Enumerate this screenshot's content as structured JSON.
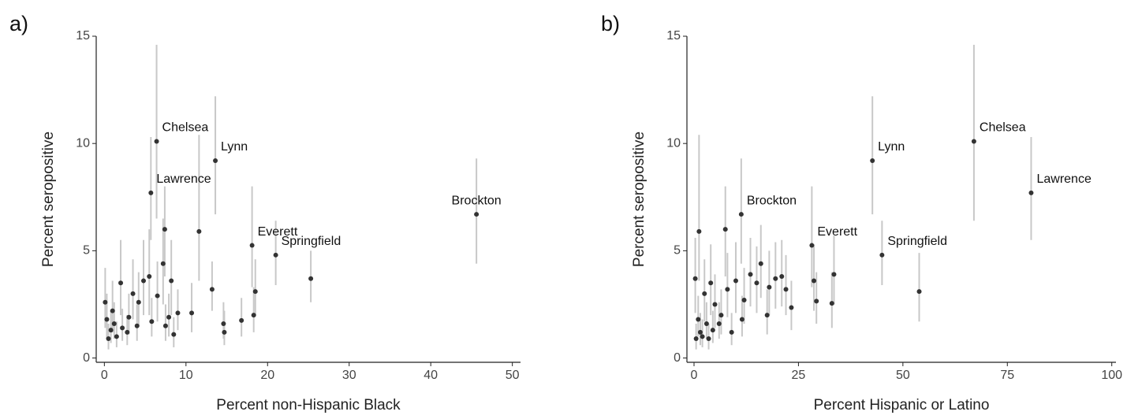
{
  "chart_data": [
    {
      "type": "scatter",
      "panel_label": "a)",
      "xlabel": "Percent non-Hispanic Black",
      "ylabel": "Percent seropositive",
      "xlim": [
        -1,
        51
      ],
      "ylim": [
        -0.2,
        15
      ],
      "xticks": [
        0,
        10,
        20,
        30,
        40,
        50
      ],
      "yticks": [
        0,
        5,
        10,
        15
      ],
      "color": "#333333",
      "bar_color": "#c8c8c8",
      "x": [
        6.4,
        13.6,
        5.7,
        45.6,
        18.1,
        21,
        25.3,
        11.6,
        7.4,
        18.5,
        18.3,
        14.6,
        14.7,
        16.8,
        13.2,
        10.7,
        9.0,
        8.2,
        7.2,
        5.5,
        4.8,
        2.0,
        3.5,
        6.5,
        7.9,
        4.2,
        1.0,
        0.1,
        0.3,
        0.8,
        1.5,
        2.2,
        2.8,
        0.5,
        1.2,
        3.0,
        4.0,
        5.8,
        7.5,
        8.5
      ],
      "y": [
        10.1,
        9.2,
        7.7,
        6.7,
        5.25,
        4.8,
        3.7,
        5.9,
        6.0,
        3.1,
        2.0,
        1.6,
        1.2,
        1.75,
        3.2,
        2.1,
        2.1,
        3.6,
        4.4,
        3.8,
        3.6,
        3.5,
        3.0,
        2.9,
        1.9,
        2.6,
        2.2,
        2.6,
        1.8,
        1.3,
        1.0,
        1.4,
        1.2,
        0.9,
        1.6,
        1.9,
        1.5,
        1.7,
        1.5,
        1.1
      ],
      "lower": [
        6.5,
        6.7,
        5.5,
        4.4,
        3.3,
        3.4,
        2.6,
        3.6,
        3.8,
        2.0,
        1.2,
        0.9,
        0.6,
        1.0,
        2.2,
        1.2,
        1.3,
        2.0,
        2.5,
        2.0,
        2.0,
        2.0,
        1.8,
        1.7,
        1.0,
        1.5,
        1.2,
        1.4,
        0.9,
        0.7,
        0.5,
        0.8,
        0.6,
        0.4,
        0.9,
        1.1,
        0.8,
        1.0,
        0.8,
        0.5
      ],
      "upper": [
        14.6,
        12.2,
        10.3,
        9.3,
        8.0,
        6.4,
        5.0,
        10.4,
        8.0,
        4.6,
        3.3,
        2.6,
        2.2,
        2.8,
        4.5,
        3.5,
        3.2,
        5.5,
        6.5,
        6.0,
        5.5,
        5.5,
        4.6,
        4.5,
        3.0,
        4.0,
        3.6,
        4.2,
        3.0,
        2.2,
        1.7,
        2.3,
        2.0,
        1.6,
        2.6,
        3.0,
        2.5,
        2.8,
        2.5,
        1.9
      ],
      "labels": [
        "Chelsea",
        "Lynn",
        "Lawrence",
        "Brockton",
        "Everett",
        "Springfield",
        null,
        null,
        null,
        null,
        null,
        null,
        null,
        null,
        null,
        null,
        null,
        null,
        null,
        null,
        null,
        null,
        null,
        null,
        null,
        null,
        null,
        null,
        null,
        null,
        null,
        null,
        null,
        null,
        null,
        null,
        null,
        null,
        null,
        null
      ]
    },
    {
      "type": "scatter",
      "panel_label": "b)",
      "xlabel": "Percent Hispanic or Latino",
      "ylabel": "Percent seropositive",
      "xlim": [
        -1.7,
        101
      ],
      "ylim": [
        -0.2,
        15
      ],
      "xticks": [
        0,
        25,
        50,
        75,
        100
      ],
      "yticks": [
        0,
        5,
        10,
        15
      ],
      "color": "#333333",
      "bar_color": "#c8c8c8",
      "x": [
        67,
        80.7,
        42.7,
        11.3,
        28.2,
        45,
        53.9,
        33.5,
        33,
        29.3,
        28.7,
        23.3,
        21,
        22,
        19.5,
        18,
        17.5,
        16,
        15,
        13.5,
        12,
        11.5,
        10,
        8,
        7.5,
        1.2,
        0.3,
        2.5,
        4.0,
        5,
        6.5,
        9,
        3,
        1.5,
        0.5,
        2,
        4.5,
        1,
        6,
        3.5
      ],
      "y": [
        10.1,
        7.7,
        9.2,
        6.7,
        5.25,
        4.8,
        3.1,
        3.9,
        2.55,
        2.65,
        3.6,
        2.35,
        3.8,
        3.2,
        3.7,
        3.3,
        2.0,
        4.4,
        3.5,
        3.9,
        2.7,
        1.8,
        3.6,
        3.2,
        6.0,
        5.9,
        3.7,
        3.0,
        3.5,
        2.5,
        2.0,
        1.2,
        1.6,
        1.2,
        0.9,
        1.0,
        1.3,
        1.8,
        1.6,
        0.9
      ],
      "lower": [
        6.4,
        5.5,
        6.7,
        4.4,
        3.3,
        3.4,
        1.7,
        2.5,
        1.4,
        1.6,
        2.2,
        1.3,
        2.4,
        2.0,
        2.3,
        2.0,
        1.1,
        2.8,
        2.1,
        2.4,
        1.6,
        1.0,
        2.1,
        1.9,
        3.8,
        3.6,
        2.1,
        1.7,
        2.0,
        1.4,
        1.1,
        0.6,
        0.9,
        0.6,
        0.4,
        0.5,
        0.7,
        1.0,
        0.9,
        0.4
      ],
      "upper": [
        14.6,
        10.3,
        12.2,
        9.3,
        8.0,
        6.4,
        4.9,
        5.7,
        4.0,
        4.0,
        5.3,
        3.6,
        5.5,
        4.8,
        5.4,
        5.0,
        3.2,
        6.2,
        5.2,
        5.6,
        4.2,
        2.9,
        5.4,
        4.9,
        8.0,
        10.4,
        5.6,
        4.6,
        5.3,
        3.9,
        3.2,
        2.1,
        2.6,
        2.1,
        1.6,
        1.8,
        2.2,
        2.9,
        2.6,
        1.6
      ],
      "labels": [
        "Chelsea",
        "Lawrence",
        "Lynn",
        "Brockton",
        "Everett",
        "Springfield",
        null,
        null,
        null,
        null,
        null,
        null,
        null,
        null,
        null,
        null,
        null,
        null,
        null,
        null,
        null,
        null,
        null,
        null,
        null,
        null,
        null,
        null,
        null,
        null,
        null,
        null,
        null,
        null,
        null,
        null,
        null,
        null,
        null,
        null
      ]
    }
  ]
}
